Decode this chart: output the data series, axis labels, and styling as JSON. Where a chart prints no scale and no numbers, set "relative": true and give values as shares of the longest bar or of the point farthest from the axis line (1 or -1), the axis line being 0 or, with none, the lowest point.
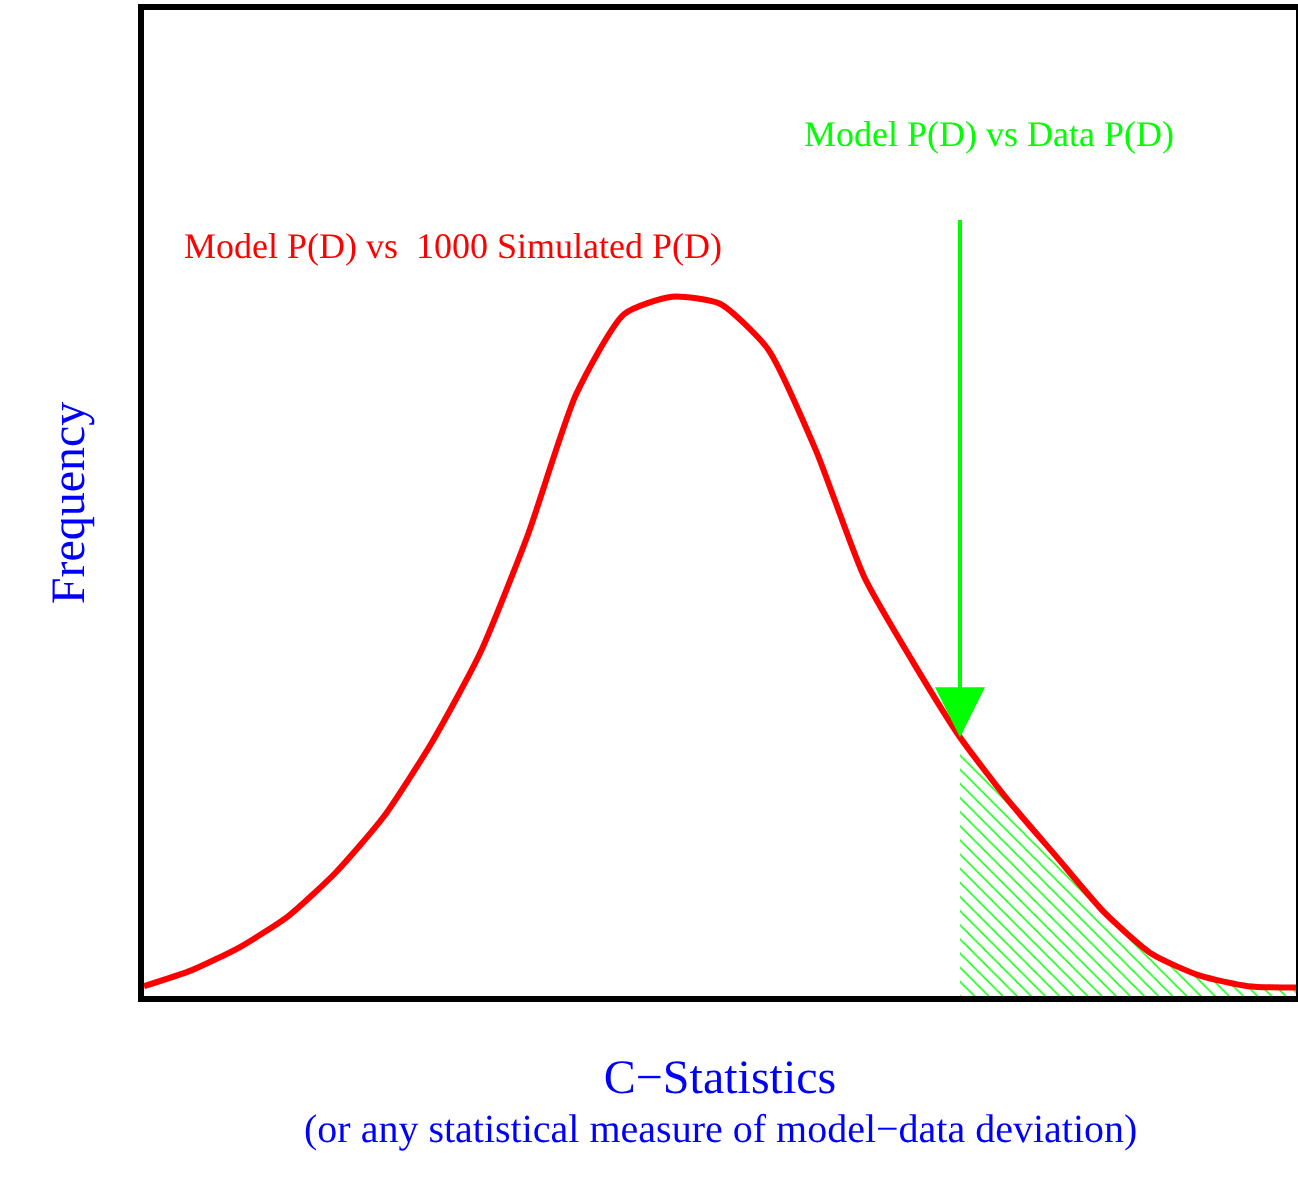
{
  "chart_data": {
    "type": "line",
    "relative": true,
    "xlabel": "C−Statistics",
    "ylabel": "Frequency",
    "categories": [
      null,
      null,
      null,
      null,
      null,
      null,
      null,
      null,
      null,
      null,
      null,
      null,
      null,
      null,
      null,
      null,
      null,
      null,
      null,
      null,
      null,
      null,
      null,
      null,
      null
    ],
    "series": [
      {
        "name": "Model P(D) vs  1000 Simulated P(D)",
        "color": "#ff0000",
        "values": [
          0.014,
          0.037,
          0.07,
          0.114,
          0.177,
          0.257,
          0.363,
          0.49,
          0.66,
          0.86,
          0.975,
          1.0,
          0.99,
          0.925,
          0.78,
          0.6,
          0.48,
          0.37,
          0.28,
          0.2,
          0.12,
          0.06,
          0.029,
          0.014,
          0.012
        ]
      },
      {
        "type": "area",
        "color": "#00ff00",
        "values": [
          null,
          null,
          null,
          null,
          null,
          null,
          null,
          null,
          null,
          null,
          null,
          null,
          null,
          null,
          null,
          null,
          null,
          0.37,
          0.28,
          0.2,
          0.12,
          0.06,
          0.029,
          0.014,
          0.012
        ]
      }
    ],
    "annotations": [
      "Model P(D) vs Data P(D)",
      "(or any statistical measure of model−data deviation)"
    ],
    "legend": false,
    "grid": false
  }
}
